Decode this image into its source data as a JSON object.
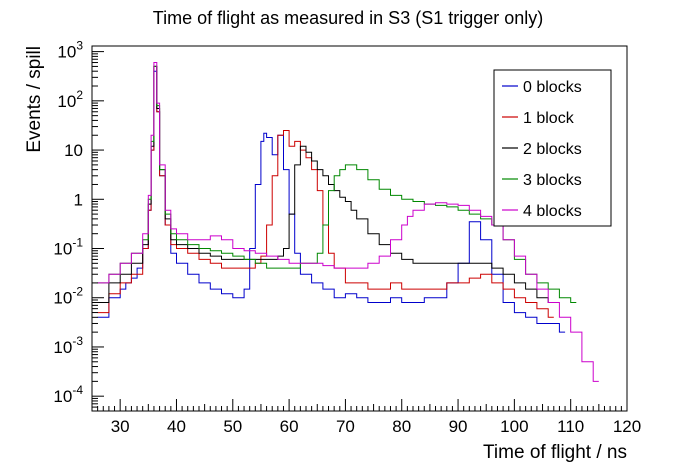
{
  "chart_data": {
    "type": "line",
    "title": "Time of flight as measured in S3 (S1 trigger only)",
    "xlabel": "Time of flight / ns",
    "ylabel": "Events / spill",
    "xlim": [
      25,
      120
    ],
    "ylim": [
      5e-05,
      1300
    ],
    "y_scale": "log",
    "grid": false,
    "legend_position": "top-right",
    "x_ticks": [
      30,
      40,
      50,
      60,
      70,
      80,
      90,
      100,
      110,
      120
    ],
    "x_tick_labels": [
      "30",
      "40",
      "50",
      "60",
      "70",
      "80",
      "90",
      "100",
      "110",
      "120"
    ],
    "y_ticks": [
      0.0001,
      0.001,
      0.01,
      0.1,
      1,
      10,
      100,
      1000
    ],
    "y_tick_labels": [
      "10^-4",
      "10^-3",
      "10^-2",
      "10^-1",
      "1",
      "10",
      "10^2",
      "10^3"
    ],
    "series": [
      {
        "name": "0 blocks",
        "color": "#0000cc",
        "x": [
          26,
          28,
          30,
          31,
          32,
          33,
          34,
          35,
          35.5,
          36,
          36.5,
          37,
          38,
          39,
          40,
          42,
          44,
          46,
          48,
          50,
          51,
          52,
          53,
          54,
          55,
          55.5,
          56,
          57,
          58,
          59,
          60,
          61,
          62,
          64,
          66,
          68,
          70,
          72,
          74,
          76,
          78,
          80,
          82,
          84,
          86,
          88,
          90,
          92,
          94,
          96,
          98,
          100,
          102,
          104,
          106,
          108
        ],
        "y": [
          0.004,
          0.01,
          0.015,
          0.02,
          0.025,
          0.04,
          0.1,
          0.6,
          10,
          400,
          60,
          3,
          0.3,
          0.08,
          0.05,
          0.03,
          0.02,
          0.015,
          0.012,
          0.01,
          0.01,
          0.015,
          0.1,
          2,
          15,
          22,
          18,
          8,
          20,
          4,
          0.5,
          0.08,
          0.03,
          0.02,
          0.015,
          0.01,
          0.012,
          0.01,
          0.008,
          0.008,
          0.01,
          0.008,
          0.008,
          0.01,
          0.01,
          0.02,
          0.05,
          0.35,
          0.15,
          0.03,
          0.008,
          0.005,
          0.004,
          0.003,
          0.003,
          0.002
        ]
      },
      {
        "name": "1 block",
        "color": "#cc0000",
        "x": [
          26,
          28,
          30,
          32,
          34,
          35,
          35.5,
          36,
          36.5,
          37,
          38,
          39,
          40,
          42,
          44,
          46,
          48,
          50,
          52,
          54,
          55,
          56,
          57,
          58,
          59,
          60,
          61,
          62,
          63,
          64,
          65,
          66,
          67,
          68,
          70,
          72,
          74,
          76,
          78,
          80,
          82,
          84,
          86,
          88,
          90,
          92,
          94,
          96,
          98,
          100,
          102,
          104,
          106
        ],
        "y": [
          0.005,
          0.012,
          0.02,
          0.03,
          0.1,
          0.6,
          10,
          500,
          60,
          3,
          0.3,
          0.12,
          0.1,
          0.08,
          0.06,
          0.05,
          0.04,
          0.04,
          0.04,
          0.05,
          0.07,
          0.3,
          3,
          20,
          25,
          12,
          15,
          10,
          7,
          4,
          1.5,
          0.3,
          0.08,
          0.04,
          0.02,
          0.02,
          0.015,
          0.015,
          0.02,
          0.015,
          0.015,
          0.015,
          0.015,
          0.02,
          0.02,
          0.025,
          0.03,
          0.02,
          0.015,
          0.01,
          0.008,
          0.006,
          0.004
        ]
      },
      {
        "name": "2 blocks",
        "color": "#000000",
        "x": [
          26,
          28,
          30,
          32,
          34,
          35,
          35.5,
          36,
          36.5,
          37,
          38,
          39,
          40,
          42,
          44,
          46,
          48,
          50,
          52,
          54,
          56,
          58,
          59,
          60,
          61,
          62,
          63,
          64,
          65,
          66,
          67,
          68,
          69,
          70,
          71,
          72,
          74,
          76,
          78,
          80,
          82,
          84,
          86,
          88,
          90,
          92,
          94,
          96,
          98,
          100,
          102,
          104,
          106
        ],
        "y": [
          0.008,
          0.02,
          0.03,
          0.05,
          0.12,
          0.8,
          12,
          500,
          70,
          4,
          0.4,
          0.15,
          0.12,
          0.1,
          0.08,
          0.07,
          0.06,
          0.06,
          0.06,
          0.06,
          0.06,
          0.07,
          0.1,
          0.5,
          5,
          12,
          9,
          6,
          4,
          3,
          2,
          1.5,
          1.1,
          0.9,
          0.6,
          0.4,
          0.2,
          0.12,
          0.08,
          0.06,
          0.05,
          0.05,
          0.05,
          0.05,
          0.05,
          0.05,
          0.05,
          0.04,
          0.03,
          0.02,
          0.015,
          0.01,
          0.008
        ]
      },
      {
        "name": "3 blocks",
        "color": "#008800",
        "x": [
          26,
          28,
          30,
          32,
          34,
          35,
          35.5,
          36,
          36.5,
          37,
          38,
          39,
          40,
          42,
          44,
          46,
          48,
          50,
          52,
          54,
          56,
          58,
          60,
          62,
          64,
          65,
          66,
          67,
          68,
          69,
          70,
          71,
          72,
          74,
          76,
          78,
          80,
          82,
          84,
          86,
          88,
          90,
          92,
          94,
          96,
          98,
          100,
          102,
          104,
          106,
          108,
          110
        ],
        "y": [
          0.02,
          0.03,
          0.05,
          0.08,
          0.15,
          1,
          15,
          500,
          80,
          4,
          0.5,
          0.2,
          0.15,
          0.12,
          0.1,
          0.09,
          0.08,
          0.07,
          0.06,
          0.05,
          0.04,
          0.04,
          0.04,
          0.05,
          0.05,
          0.08,
          0.3,
          1.5,
          3,
          4,
          5,
          5,
          4,
          2.5,
          1.6,
          1.2,
          1.0,
          0.9,
          0.8,
          0.75,
          0.7,
          0.6,
          0.5,
          0.4,
          0.3,
          0.15,
          0.06,
          0.03,
          0.02,
          0.015,
          0.01,
          0.008
        ]
      },
      {
        "name": "4 blocks",
        "color": "#cc00cc",
        "x": [
          26,
          28,
          30,
          32,
          34,
          35,
          35.5,
          36,
          36.5,
          37,
          38,
          39,
          40,
          42,
          44,
          46,
          48,
          50,
          52,
          54,
          56,
          58,
          60,
          62,
          64,
          66,
          68,
          70,
          72,
          74,
          76,
          78,
          80,
          81,
          82,
          84,
          86,
          88,
          90,
          92,
          94,
          96,
          98,
          100,
          102,
          104,
          106,
          108,
          110,
          112,
          114
        ],
        "y": [
          0.02,
          0.03,
          0.05,
          0.08,
          0.2,
          1.2,
          20,
          600,
          90,
          5,
          0.6,
          0.25,
          0.2,
          0.15,
          0.15,
          0.18,
          0.15,
          0.1,
          0.09,
          0.08,
          0.07,
          0.06,
          0.05,
          0.05,
          0.05,
          0.045,
          0.04,
          0.04,
          0.04,
          0.05,
          0.07,
          0.15,
          0.3,
          0.45,
          0.6,
          0.8,
          0.85,
          0.8,
          0.75,
          0.6,
          0.45,
          0.3,
          0.15,
          0.07,
          0.03,
          0.015,
          0.008,
          0.004,
          0.002,
          0.0005,
          0.0002
        ]
      }
    ]
  }
}
